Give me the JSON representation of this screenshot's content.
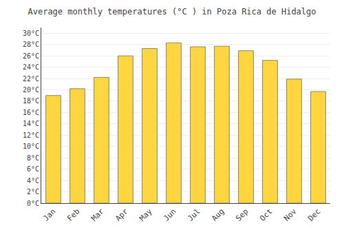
{
  "chart_data": {
    "type": "bar",
    "title": "Average monthly temperatures (°C ) in Poza Rica de Hidalgo",
    "categories": [
      "Jan",
      "Feb",
      "Mar",
      "Apr",
      "May",
      "Jun",
      "Jul",
      "Aug",
      "Sep",
      "Oct",
      "Nov",
      "Dec"
    ],
    "values": [
      19.0,
      20.2,
      22.2,
      26.0,
      27.3,
      28.3,
      27.6,
      27.7,
      26.9,
      25.2,
      21.9,
      19.7
    ],
    "color": "#FFD540",
    "ylim": [
      0,
      31
    ],
    "yticks": [
      {
        "value": 0,
        "label": "0°C"
      },
      {
        "value": 2,
        "label": "2°C"
      },
      {
        "value": 4,
        "label": "4°C"
      },
      {
        "value": 6,
        "label": "6°C"
      },
      {
        "value": 8,
        "label": "8°C"
      },
      {
        "value": 10,
        "label": "10°C"
      },
      {
        "value": 12,
        "label": "12°C"
      },
      {
        "value": 14,
        "label": "14°C"
      },
      {
        "value": 16,
        "label": "16°C"
      },
      {
        "value": 18,
        "label": "18°C"
      },
      {
        "value": 20,
        "label": "20°C"
      },
      {
        "value": 22,
        "label": "22°C"
      },
      {
        "value": 24,
        "label": "24°C"
      },
      {
        "value": 26,
        "label": "26°C"
      },
      {
        "value": 28,
        "label": "28°C"
      },
      {
        "value": 30,
        "label": "30°C"
      }
    ],
    "grid": true
  }
}
